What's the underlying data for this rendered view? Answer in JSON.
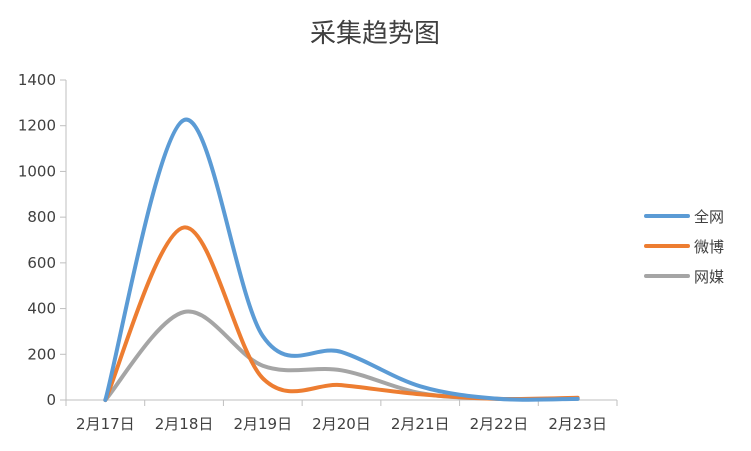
{
  "chart_data": {
    "type": "line",
    "title": "采集趋势图",
    "xlabel": "",
    "ylabel": "",
    "categories": [
      "2月17日",
      "2月18日",
      "2月19日",
      "2月20日",
      "2月21日",
      "2月22日",
      "2月23日"
    ],
    "ylim": [
      0,
      1400
    ],
    "yticks": [
      0,
      200,
      400,
      600,
      800,
      1000,
      1200,
      1400
    ],
    "grid": false,
    "smooth": true,
    "legend_position": "right",
    "series": [
      {
        "name": "全网",
        "color": "#5b9bd5",
        "values": [
          0,
          1225,
          280,
          210,
          60,
          5,
          5
        ]
      },
      {
        "name": "微博",
        "color": "#ed7d31",
        "values": [
          0,
          755,
          95,
          65,
          25,
          5,
          10
        ]
      },
      {
        "name": "网媒",
        "color": "#a5a5a5",
        "values": [
          0,
          385,
          150,
          130,
          30,
          5,
          5
        ]
      }
    ]
  }
}
